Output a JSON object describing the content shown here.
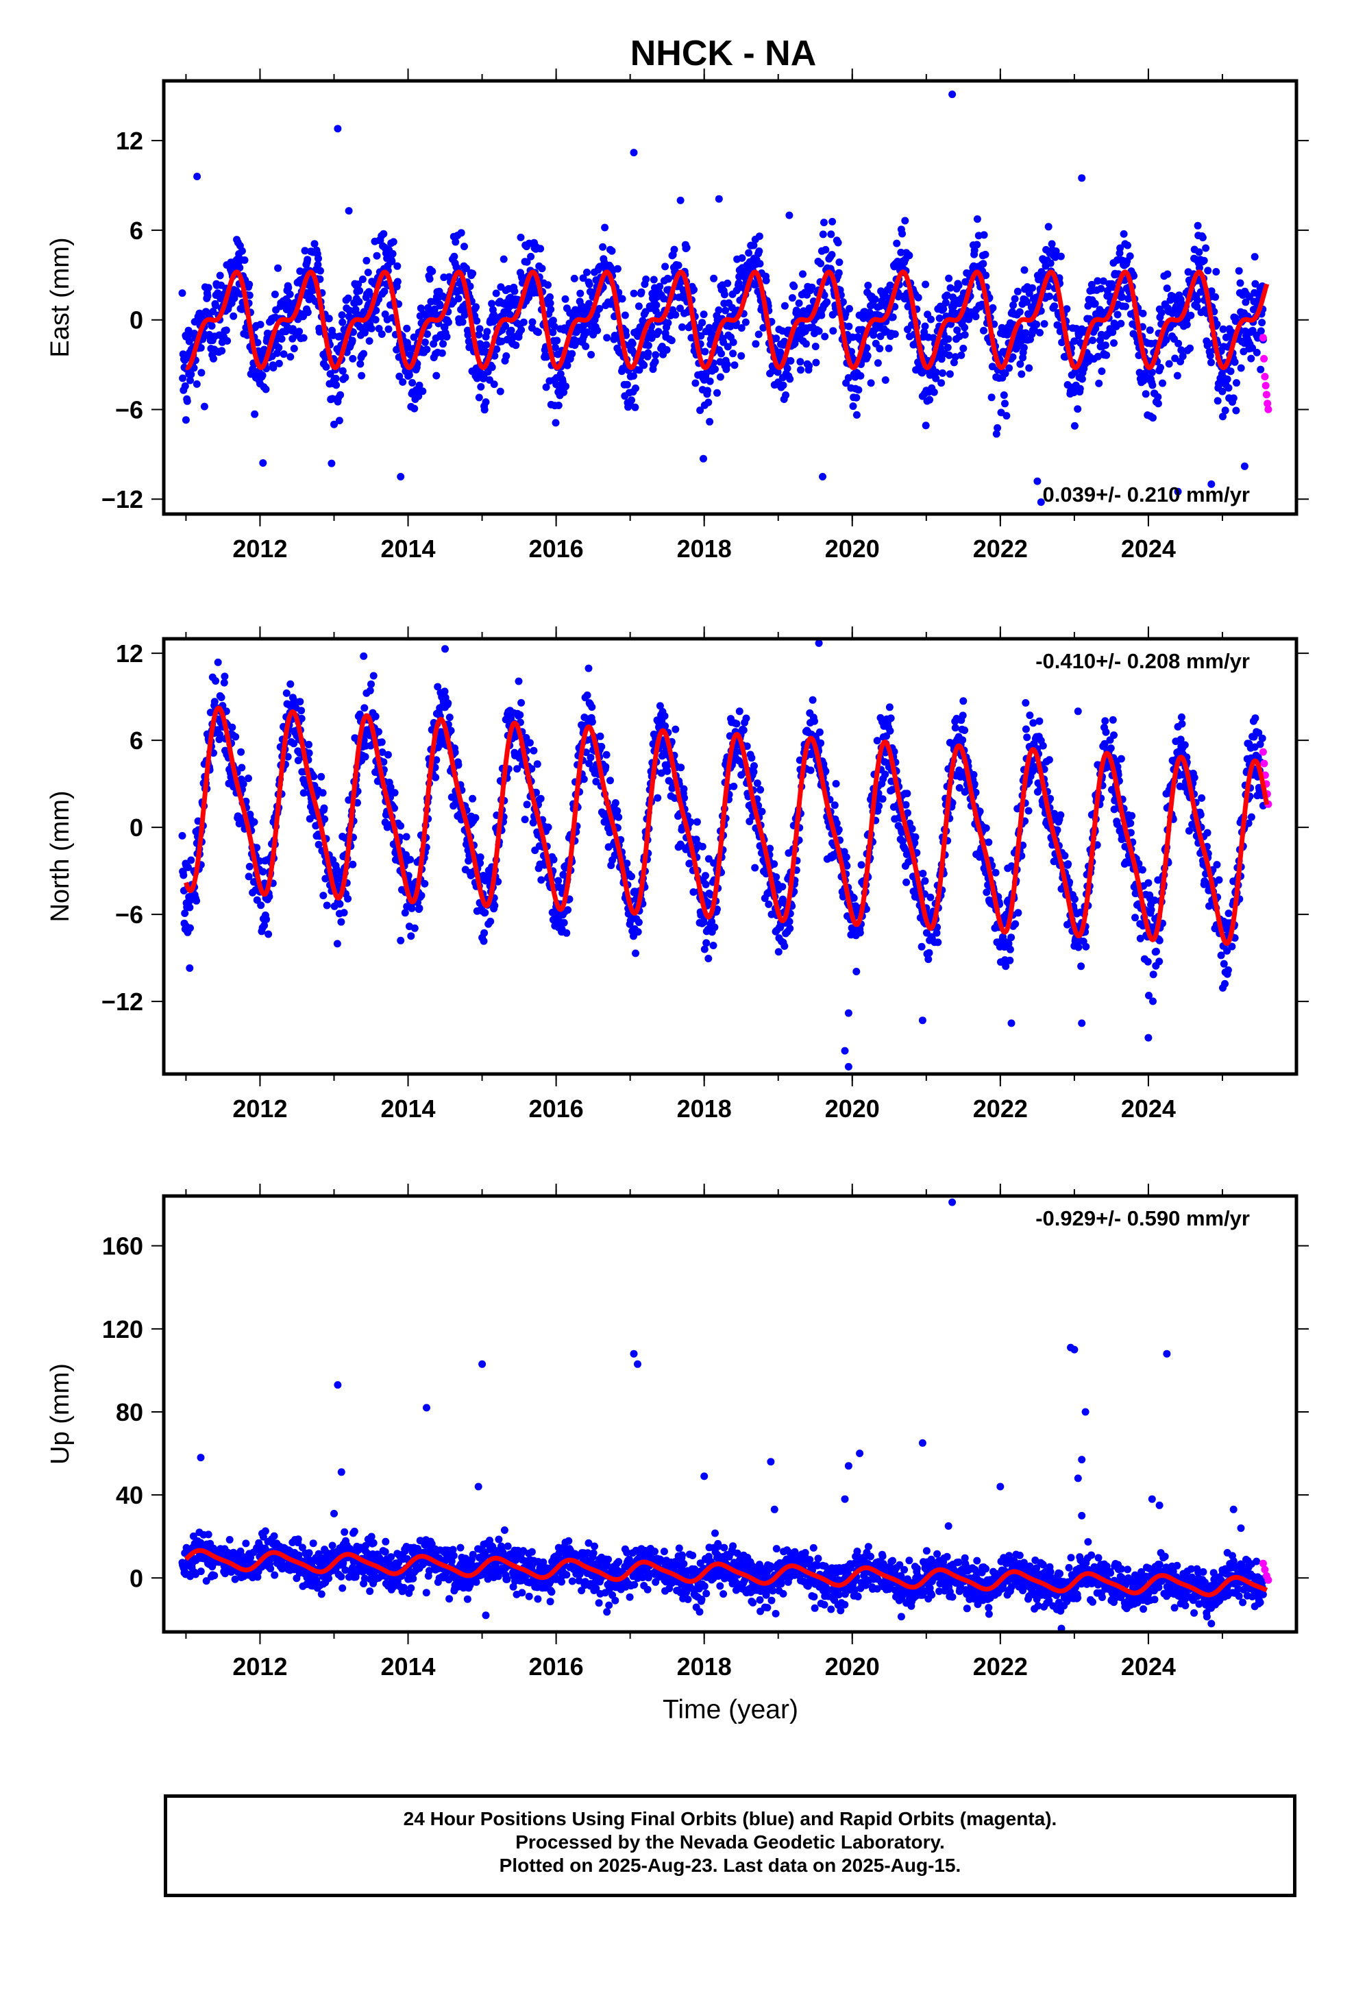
{
  "title": "NHCK - NA",
  "xlabel": "Time (year)",
  "colors": {
    "final": "#0000ff",
    "rapid": "#ff00ff",
    "model": "#ff0000",
    "frame": "#000000"
  },
  "caption": [
    "24 Hour Positions Using Final Orbits (blue) and Rapid Orbits (magenta).",
    "Processed by the Nevada Geodetic Laboratory.",
    "Plotted on 2025-Aug-23. Last data on 2025-Aug-15."
  ],
  "chart_data": [
    {
      "type": "scatter",
      "component": "east",
      "ylabel": "East (mm)",
      "rate_label": "0.039+/- 0.210 mm/yr",
      "rate_position": "bottom-right",
      "xlim": [
        2010.7,
        2026.0
      ],
      "ylim": [
        -13,
        16
      ],
      "xticks": [
        2012,
        2014,
        2016,
        2018,
        2020,
        2022,
        2024
      ],
      "yticks": [
        -12,
        -6,
        0,
        6,
        12
      ],
      "grid": false,
      "model": {
        "trend_mm": [
          0.0,
          0.0
        ],
        "amp_annual": 2.4,
        "amp_semiannual": 1.3,
        "phase_annual": 0.35,
        "phase_semiannual": 0.1
      },
      "scatter_sd_mm": 1.6,
      "series": [
        {
          "kind": "final",
          "marker": "dot",
          "color": "#0000ff",
          "x_range": [
            2010.95,
            2025.55
          ]
        },
        {
          "kind": "rapid",
          "marker": "dot",
          "color": "#ff00ff",
          "x_range": [
            2025.55,
            2025.62
          ],
          "values": [
            -1.2,
            -2.6,
            -3.8,
            -4.4,
            -5.0,
            -5.6,
            -6.0
          ]
        },
        {
          "kind": "model",
          "color": "#ff0000",
          "line": "solid"
        }
      ],
      "outliers": [
        [
          2011.15,
          9.6
        ],
        [
          2013.05,
          12.8
        ],
        [
          2013.2,
          7.3
        ],
        [
          2017.05,
          11.2
        ],
        [
          2021.35,
          15.1
        ],
        [
          2023.1,
          9.5
        ],
        [
          2018.2,
          8.1
        ],
        [
          2019.15,
          7.0
        ],
        [
          2011.0,
          -6.7
        ],
        [
          2013.0,
          -7.0
        ],
        [
          2013.9,
          -10.5
        ],
        [
          2019.6,
          -10.5
        ],
        [
          2022.5,
          -10.8
        ],
        [
          2022.55,
          -12.2
        ],
        [
          2024.4,
          -11.5
        ],
        [
          2024.85,
          -11.0
        ],
        [
          2025.3,
          -9.8
        ],
        [
          2011.25,
          -5.8
        ],
        [
          2015.05,
          -5.5
        ]
      ]
    },
    {
      "type": "scatter",
      "component": "north",
      "ylabel": "North (mm)",
      "rate_label": "-0.410+/- 0.208 mm/yr",
      "rate_position": "top-right",
      "xlim": [
        2010.7,
        2026.0
      ],
      "ylim": [
        -17,
        13
      ],
      "xticks": [
        2012,
        2014,
        2016,
        2018,
        2020,
        2022,
        2024
      ],
      "yticks": [
        -12,
        -6,
        0,
        6,
        12
      ],
      "grid": false,
      "model": {
        "trend_mm": [
          2.0,
          -1.8
        ],
        "amp_annual": 5.8,
        "amp_semiannual": 1.4,
        "phase_annual": 0.25,
        "phase_semiannual": 0.25
      },
      "scatter_sd_mm": 1.4,
      "series": [
        {
          "kind": "final",
          "marker": "dot",
          "color": "#0000ff",
          "x_range": [
            2010.95,
            2025.55
          ]
        },
        {
          "kind": "rapid",
          "marker": "dot",
          "color": "#ff00ff",
          "x_range": [
            2025.55,
            2025.62
          ],
          "values": [
            5.2,
            4.4,
            3.6,
            3.0,
            2.3,
            1.6
          ]
        },
        {
          "kind": "model",
          "color": "#ff0000",
          "line": "solid"
        }
      ],
      "outliers": [
        [
          2011.05,
          -9.7
        ],
        [
          2011.0,
          -6.8
        ],
        [
          2013.4,
          11.8
        ],
        [
          2014.5,
          12.3
        ],
        [
          2019.55,
          12.7
        ],
        [
          2019.95,
          -16.5
        ],
        [
          2019.9,
          -15.4
        ],
        [
          2019.95,
          -12.8
        ],
        [
          2013.9,
          -7.8
        ],
        [
          2020.95,
          -13.3
        ],
        [
          2022.15,
          -13.5
        ],
        [
          2023.1,
          -13.5
        ],
        [
          2023.05,
          8.0
        ],
        [
          2024.0,
          -14.5
        ]
      ]
    },
    {
      "type": "scatter",
      "component": "up",
      "ylabel": "Up (mm)",
      "rate_label": "-0.929+/- 0.590 mm/yr",
      "rate_position": "top-right",
      "xlim": [
        2010.7,
        2026.0
      ],
      "ylim": [
        -26,
        184
      ],
      "xticks": [
        2012,
        2014,
        2016,
        2018,
        2020,
        2022,
        2024
      ],
      "yticks": [
        0,
        40,
        80,
        120,
        160
      ],
      "grid": false,
      "model": {
        "trend_mm": [
          9.0,
          -4.5
        ],
        "amp_annual": 4.0,
        "amp_semiannual": 1.0,
        "phase_annual": 0.0,
        "phase_semiannual": 0.0
      },
      "scatter_sd_mm": 5.0,
      "series": [
        {
          "kind": "final",
          "marker": "dot",
          "color": "#0000ff",
          "x_range": [
            2010.95,
            2025.55
          ]
        },
        {
          "kind": "rapid",
          "marker": "dot",
          "color": "#ff00ff",
          "x_range": [
            2025.55,
            2025.62
          ],
          "values": [
            7.0,
            4.0,
            1.0,
            -1.0
          ]
        },
        {
          "kind": "model",
          "color": "#ff0000",
          "line": "solid"
        }
      ],
      "outliers": [
        [
          2011.2,
          58
        ],
        [
          2013.05,
          93
        ],
        [
          2013.1,
          51
        ],
        [
          2013.0,
          31
        ],
        [
          2014.25,
          82
        ],
        [
          2015.0,
          103
        ],
        [
          2014.95,
          44
        ],
        [
          2017.05,
          108
        ],
        [
          2017.1,
          103
        ],
        [
          2018.0,
          49
        ],
        [
          2018.9,
          56
        ],
        [
          2018.95,
          33
        ],
        [
          2019.95,
          54
        ],
        [
          2020.1,
          60
        ],
        [
          2019.9,
          38
        ],
        [
          2020.95,
          65
        ],
        [
          2021.35,
          181
        ],
        [
          2021.3,
          25
        ],
        [
          2022.0,
          44
        ],
        [
          2022.95,
          111
        ],
        [
          2023.0,
          110
        ],
        [
          2023.1,
          57
        ],
        [
          2023.15,
          80
        ],
        [
          2023.05,
          48
        ],
        [
          2023.1,
          30
        ],
        [
          2024.25,
          108
        ],
        [
          2024.05,
          38
        ],
        [
          2024.15,
          35
        ],
        [
          2025.15,
          33
        ],
        [
          2025.25,
          24
        ],
        [
          2015.05,
          -18
        ],
        [
          2024.85,
          -22
        ]
      ]
    }
  ]
}
